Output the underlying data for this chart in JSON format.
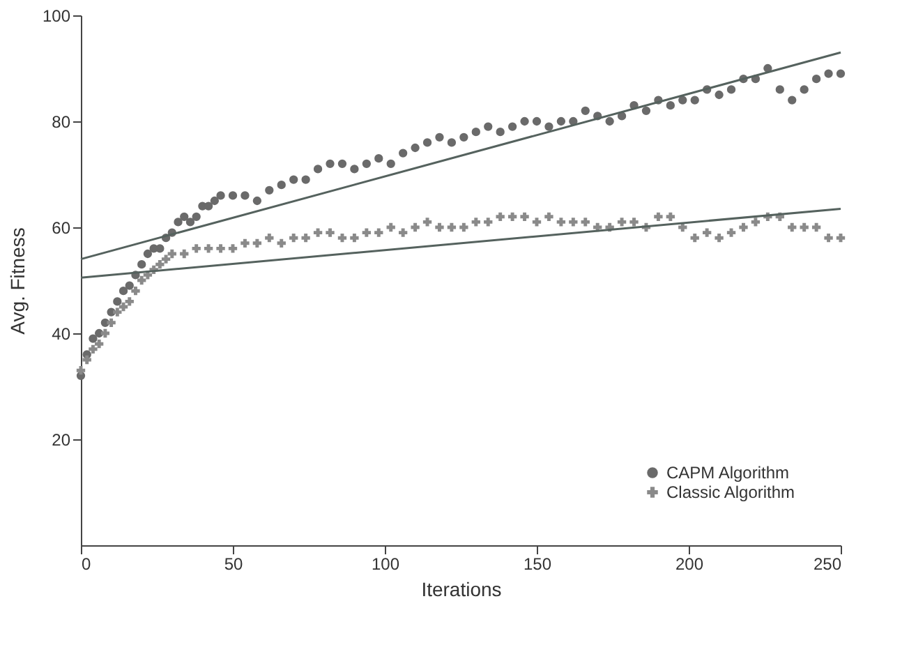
{
  "chart_data": {
    "type": "scatter",
    "xlabel": "Iterations",
    "ylabel": "Avg. Fitness",
    "xlim": [
      0,
      250
    ],
    "ylim": [
      0,
      100
    ],
    "xticks": [
      0,
      50,
      100,
      150,
      200,
      250
    ],
    "yticks": [
      20,
      40,
      60,
      80,
      100
    ],
    "grid": false,
    "legend": "bottom right",
    "series": [
      {
        "name": "CAPM Algorithm",
        "color": "#6a6a6a",
        "marker": "circle",
        "x": [
          0,
          2,
          4,
          6,
          8,
          10,
          12,
          14,
          16,
          18,
          20,
          22,
          24,
          26,
          28,
          30,
          32,
          34,
          36,
          38,
          40,
          42,
          44,
          46,
          50,
          54,
          58,
          62,
          66,
          70,
          74,
          78,
          82,
          86,
          90,
          94,
          98,
          102,
          106,
          110,
          114,
          118,
          122,
          126,
          130,
          134,
          138,
          142,
          146,
          150,
          154,
          158,
          162,
          166,
          170,
          174,
          178,
          182,
          186,
          190,
          194,
          198,
          202,
          206,
          210,
          214,
          218,
          222,
          226,
          230,
          234,
          238,
          242,
          246,
          250
        ],
        "values": [
          32,
          36,
          39,
          40,
          42,
          44,
          46,
          48,
          49,
          51,
          53,
          55,
          56,
          56,
          58,
          59,
          61,
          62,
          61,
          62,
          64,
          64,
          65,
          66,
          66,
          66,
          65,
          67,
          68,
          69,
          69,
          71,
          72,
          72,
          71,
          72,
          73,
          72,
          74,
          75,
          76,
          77,
          76,
          77,
          78,
          79,
          78,
          79,
          80,
          80,
          79,
          80,
          80,
          82,
          81,
          80,
          81,
          83,
          82,
          84,
          83,
          84,
          84,
          86,
          85,
          86,
          88,
          88,
          90,
          86,
          84,
          86,
          88,
          89,
          89
        ]
      },
      {
        "name": "Classic Algorithm",
        "color": "#8a8a8a",
        "marker": "cross",
        "x": [
          0,
          2,
          4,
          6,
          8,
          10,
          12,
          14,
          16,
          18,
          20,
          22,
          24,
          26,
          28,
          30,
          34,
          38,
          42,
          46,
          50,
          54,
          58,
          62,
          66,
          70,
          74,
          78,
          82,
          86,
          90,
          94,
          98,
          102,
          106,
          110,
          114,
          118,
          122,
          126,
          130,
          134,
          138,
          142,
          146,
          150,
          154,
          158,
          162,
          166,
          170,
          174,
          178,
          182,
          186,
          190,
          194,
          198,
          202,
          206,
          210,
          214,
          218,
          222,
          226,
          230,
          234,
          238,
          242,
          246,
          250
        ],
        "values": [
          33,
          35,
          37,
          38,
          40,
          42,
          44,
          45,
          46,
          48,
          50,
          51,
          52,
          53,
          54,
          55,
          55,
          56,
          56,
          56,
          56,
          57,
          57,
          58,
          57,
          58,
          58,
          59,
          59,
          58,
          58,
          59,
          59,
          60,
          59,
          60,
          61,
          60,
          60,
          60,
          61,
          61,
          62,
          62,
          62,
          61,
          62,
          61,
          61,
          61,
          60,
          60,
          61,
          61,
          60,
          62,
          62,
          60,
          58,
          59,
          58,
          59,
          60,
          61,
          62,
          62,
          60,
          60,
          60,
          58,
          58
        ]
      },
      {
        "type": "line",
        "color": "#55625e",
        "line_style": "solid",
        "x": [
          0,
          250
        ],
        "values": [
          54,
          93
        ]
      },
      {
        "type": "line",
        "color": "#55625e",
        "line_style": "solid",
        "x": [
          0,
          250
        ],
        "values": [
          50.5,
          63.5
        ]
      }
    ]
  }
}
